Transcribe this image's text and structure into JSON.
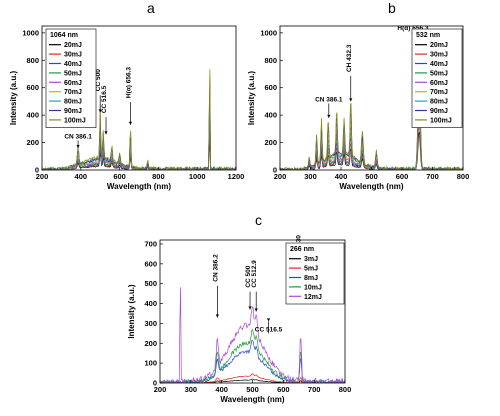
{
  "panels": {
    "a": {
      "letter": "a"
    },
    "b": {
      "letter": "b"
    },
    "c": {
      "letter": "c"
    }
  },
  "chart_data": [
    {
      "id": "a",
      "type": "line",
      "xlabel": "Wavelength (nm)",
      "ylabel": "Intensity (a.u.)",
      "xlim": [
        200,
        1200
      ],
      "ylim": [
        0,
        1050
      ],
      "xticks": [
        200,
        400,
        600,
        800,
        1000,
        1200
      ],
      "yticks": [
        0,
        200,
        400,
        600,
        800,
        1000
      ],
      "legend_title": "1064 nm",
      "legend_position": "top-left",
      "series": [
        {
          "name": "20mJ",
          "color": "#000000",
          "scale": 0.3
        },
        {
          "name": "30mJ",
          "color": "#e8251d",
          "scale": 0.38
        },
        {
          "name": "40mJ",
          "color": "#2545d6",
          "scale": 0.46
        },
        {
          "name": "50mJ",
          "color": "#1e9e3a",
          "scale": 0.54
        },
        {
          "name": "60mJ",
          "color": "#a64ad9",
          "scale": 0.62
        },
        {
          "name": "70mJ",
          "color": "#d6a81c",
          "scale": 0.72
        },
        {
          "name": "80mJ",
          "color": "#19a8c9",
          "scale": 0.82
        },
        {
          "name": "90mJ",
          "color": "#333399",
          "scale": 0.91
        },
        {
          "name": "100mJ",
          "color": "#8a8a12",
          "scale": 1.0
        }
      ],
      "peaks": [
        {
          "x": 386,
          "height": 130,
          "width": 6
        },
        {
          "x": 500,
          "height": 380,
          "width": 4
        },
        {
          "x": 516,
          "height": 220,
          "width": 4
        },
        {
          "x": 560,
          "height": 110,
          "width": 5
        },
        {
          "x": 600,
          "height": 80,
          "width": 5
        },
        {
          "x": 656,
          "height": 300,
          "width": 4
        },
        {
          "x": 745,
          "height": 60,
          "width": 4
        },
        {
          "x": 1064,
          "height": 1000,
          "width": 2.5
        }
      ],
      "background": {
        "center": 500,
        "spread": 120,
        "height": 80
      },
      "annotations": [
        {
          "text": "CN 386.1",
          "x": 386,
          "label_y": 230,
          "arrow_to": 160,
          "rotate": false
        },
        {
          "text": "CC 500",
          "x": 500,
          "label_y": 560,
          "arrow_to": 420,
          "rotate": true
        },
        {
          "text": "CC 516.5",
          "x": 530,
          "label_y": 400,
          "arrow_to": 260,
          "rotate": true
        },
        {
          "text": "H(α) 656.3",
          "x": 656,
          "label_y": 510,
          "arrow_to": 330,
          "rotate": true
        }
      ]
    },
    {
      "id": "b",
      "type": "line",
      "xlabel": "Wavelength (nm)",
      "ylabel": "Intensity (a.u.)",
      "xlim": [
        200,
        800
      ],
      "ylim": [
        0,
        1050
      ],
      "xticks": [
        200,
        300,
        400,
        500,
        600,
        700,
        800
      ],
      "yticks": [
        0,
        200,
        400,
        600,
        800,
        1000
      ],
      "legend_title": "532 nm",
      "legend_position": "top-right",
      "series": [
        {
          "name": "20mJ",
          "color": "#000000",
          "scale": 0.3
        },
        {
          "name": "30mJ",
          "color": "#e8251d",
          "scale": 0.38
        },
        {
          "name": "40mJ",
          "color": "#2545d6",
          "scale": 0.46
        },
        {
          "name": "50mJ",
          "color": "#1e9e3a",
          "scale": 0.54
        },
        {
          "name": "60mJ",
          "color": "#a64ad9",
          "scale": 0.62
        },
        {
          "name": "70mJ",
          "color": "#d6a81c",
          "scale": 0.72
        },
        {
          "name": "80mJ",
          "color": "#19a8c9",
          "scale": 0.82
        },
        {
          "name": "90mJ",
          "color": "#333399",
          "scale": 0.91
        },
        {
          "name": "100mJ",
          "color": "#8a8a12",
          "scale": 1.0
        }
      ],
      "peaks": [
        {
          "x": 296,
          "height": 80,
          "width": 3
        },
        {
          "x": 320,
          "height": 230,
          "width": 3
        },
        {
          "x": 336,
          "height": 310,
          "width": 3
        },
        {
          "x": 358,
          "height": 290,
          "width": 3
        },
        {
          "x": 386,
          "height": 330,
          "width": 3
        },
        {
          "x": 410,
          "height": 260,
          "width": 3
        },
        {
          "x": 432,
          "height": 450,
          "width": 3
        },
        {
          "x": 470,
          "height": 230,
          "width": 4
        },
        {
          "x": 516,
          "height": 120,
          "width": 4
        },
        {
          "x": 656,
          "height": 950,
          "width": 5
        }
      ],
      "background": {
        "center": 400,
        "spread": 70,
        "height": 120
      },
      "annotations": [
        {
          "text": "CN 386.1",
          "x": 360,
          "label_y": 500,
          "arrow_to": 380,
          "rotate": false
        },
        {
          "text": "CH 432.3",
          "x": 432,
          "label_y": 700,
          "arrow_to": 500,
          "rotate": true
        },
        {
          "text": "H(α) 656.3",
          "x": 636,
          "label_y": 1020,
          "arrow_to": 980,
          "rotate": false
        }
      ]
    },
    {
      "id": "c",
      "type": "line",
      "xlabel": "Wavelength (nm)",
      "ylabel": "Intensity (a.u.)",
      "xlim": [
        200,
        800
      ],
      "ylim": [
        0,
        720
      ],
      "xticks": [
        200,
        300,
        400,
        500,
        600,
        700,
        800
      ],
      "yticks": [
        0,
        100,
        200,
        300,
        400,
        500,
        600,
        700
      ],
      "legend_title": "266 nm",
      "legend_position": "top-right",
      "series": [
        {
          "name": "3mJ",
          "color": "#000000",
          "scale": 0.05
        },
        {
          "name": "5mJ",
          "color": "#e8251d",
          "scale": 0.12
        },
        {
          "name": "8mJ",
          "color": "#2545d6",
          "scale": 0.55
        },
        {
          "name": "10mJ",
          "color": "#1e9e3a",
          "scale": 0.7
        },
        {
          "name": "12mJ",
          "color": "#a64ad9",
          "scale": 1.0
        }
      ],
      "spike": {
        "x": 266,
        "height": 690,
        "series": "12mJ"
      },
      "peaks": [
        {
          "x": 386,
          "height": 150,
          "width": 5
        },
        {
          "x": 500,
          "height": 120,
          "width": 6
        },
        {
          "x": 513,
          "height": 90,
          "width": 5
        },
        {
          "x": 656,
          "height": 230,
          "width": 4
        }
      ],
      "background": {
        "center": 480,
        "spread": 80,
        "height": 280
      },
      "annotations": [
        {
          "text": "CN 386.2",
          "x": 386,
          "label_y": 500,
          "arrow_to": 330,
          "rotate": true
        },
        {
          "text": "CC 500",
          "x": 492,
          "label_y": 470,
          "arrow_to": 370,
          "rotate": true
        },
        {
          "text": "CC 512.9",
          "x": 512,
          "label_y": 470,
          "arrow_to": 360,
          "rotate": true
        },
        {
          "text": "CC 516.5",
          "x": 552,
          "label_y": 260,
          "arrow_to": 310,
          "rotate": false
        },
        {
          "text": "H(α) 656.30",
          "x": 656,
          "label_y": 560,
          "arrow_to": 400,
          "rotate": true
        }
      ]
    }
  ]
}
